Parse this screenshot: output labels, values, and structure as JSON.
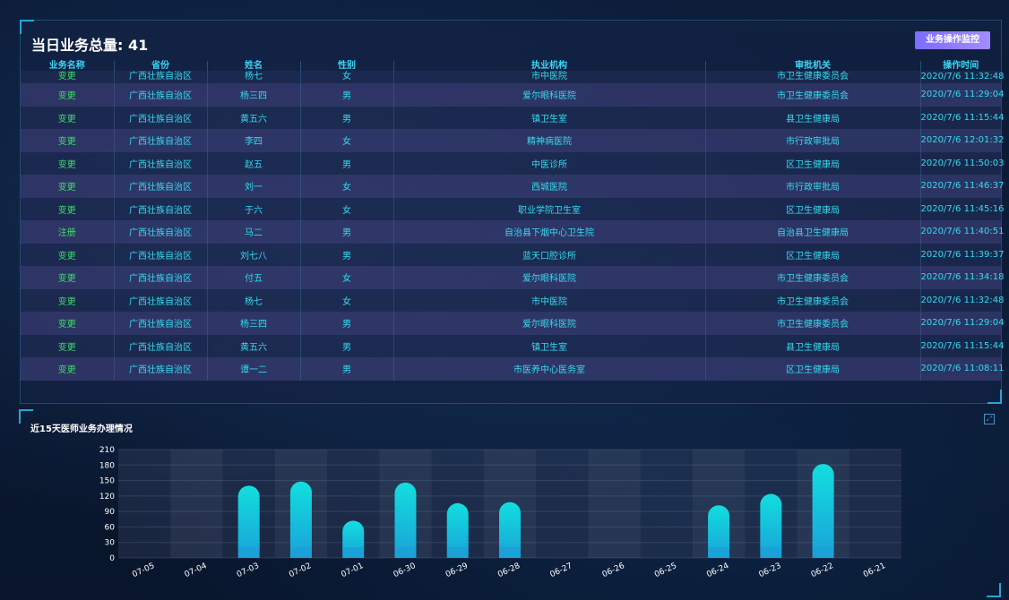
{
  "header": {
    "title": "当日业务总量: 41",
    "button_label": "业务操作监控"
  },
  "table": {
    "columns": [
      "业务名称",
      "省份",
      "姓名",
      "性别",
      "执业机构",
      "审批机关",
      "操作时间"
    ],
    "rows": [
      [
        "变更",
        "广西壮族自治区",
        "杨七",
        "女",
        "市中医院",
        "市卫生健康委员会",
        "2020/7/6 11:32:48"
      ],
      [
        "变更",
        "广西壮族自治区",
        "杨三四",
        "男",
        "爱尔眼科医院",
        "市卫生健康委员会",
        "2020/7/6 11:29:04"
      ],
      [
        "变更",
        "广西壮族自治区",
        "黄五六",
        "男",
        "镇卫生室",
        "县卫生健康局",
        "2020/7/6 11:15:44"
      ],
      [
        "变更",
        "广西壮族自治区",
        "李四",
        "女",
        "精神病医院",
        "市行政审批局",
        "2020/7/6 12:01:32"
      ],
      [
        "变更",
        "广西壮族自治区",
        "赵五",
        "男",
        "中医诊所",
        "区卫生健康局",
        "2020/7/6 11:50:03"
      ],
      [
        "变更",
        "广西壮族自治区",
        "刘一",
        "女",
        "西城医院",
        "市行政审批局",
        "2020/7/6 11:46:37"
      ],
      [
        "变更",
        "广西壮族自治区",
        "于六",
        "女",
        "职业学院卫生室",
        "区卫生健康局",
        "2020/7/6 11:45:16"
      ],
      [
        "注册",
        "广西壮族自治区",
        "马二",
        "男",
        "自治县下烟中心卫生院",
        "自治县卫生健康局",
        "2020/7/6 11:40:51"
      ],
      [
        "变更",
        "广西壮族自治区",
        "刘七八",
        "男",
        "蓝天口腔诊所",
        "区卫生健康局",
        "2020/7/6 11:39:37"
      ],
      [
        "变更",
        "广西壮族自治区",
        "付五",
        "女",
        "爱尔眼科医院",
        "市卫生健康委员会",
        "2020/7/6 11:34:18"
      ],
      [
        "变更",
        "广西壮族自治区",
        "杨七",
        "女",
        "市中医院",
        "市卫生健康委员会",
        "2020/7/6 11:32:48"
      ],
      [
        "变更",
        "广西壮族自治区",
        "杨三四",
        "男",
        "爱尔眼科医院",
        "市卫生健康委员会",
        "2020/7/6 11:29:04"
      ],
      [
        "变更",
        "广西壮族自治区",
        "黄五六",
        "男",
        "镇卫生室",
        "县卫生健康局",
        "2020/7/6 11:15:44"
      ],
      [
        "变更",
        "广西壮族自治区",
        "谭一二",
        "男",
        "市医养中心医务室",
        "区卫生健康局",
        "2020/7/6 11:08:11"
      ]
    ]
  },
  "chart_data": {
    "type": "bar",
    "title": "近15天医师业务办理情况",
    "categories": [
      "07-05",
      "07-04",
      "07-03",
      "07-02",
      "07-01",
      "06-30",
      "06-29",
      "06-28",
      "06-27",
      "06-26",
      "06-25",
      "06-24",
      "06-23",
      "06-22",
      "06-21"
    ],
    "values": [
      0,
      0,
      140,
      148,
      72,
      146,
      106,
      108,
      0,
      0,
      0,
      102,
      124,
      182,
      0
    ],
    "ylim": [
      0,
      210
    ],
    "yticks": [
      0,
      30,
      60,
      90,
      120,
      150,
      180,
      210
    ],
    "bar_color_top": "#12dede",
    "bar_color_bottom": "#1aa2d8"
  }
}
